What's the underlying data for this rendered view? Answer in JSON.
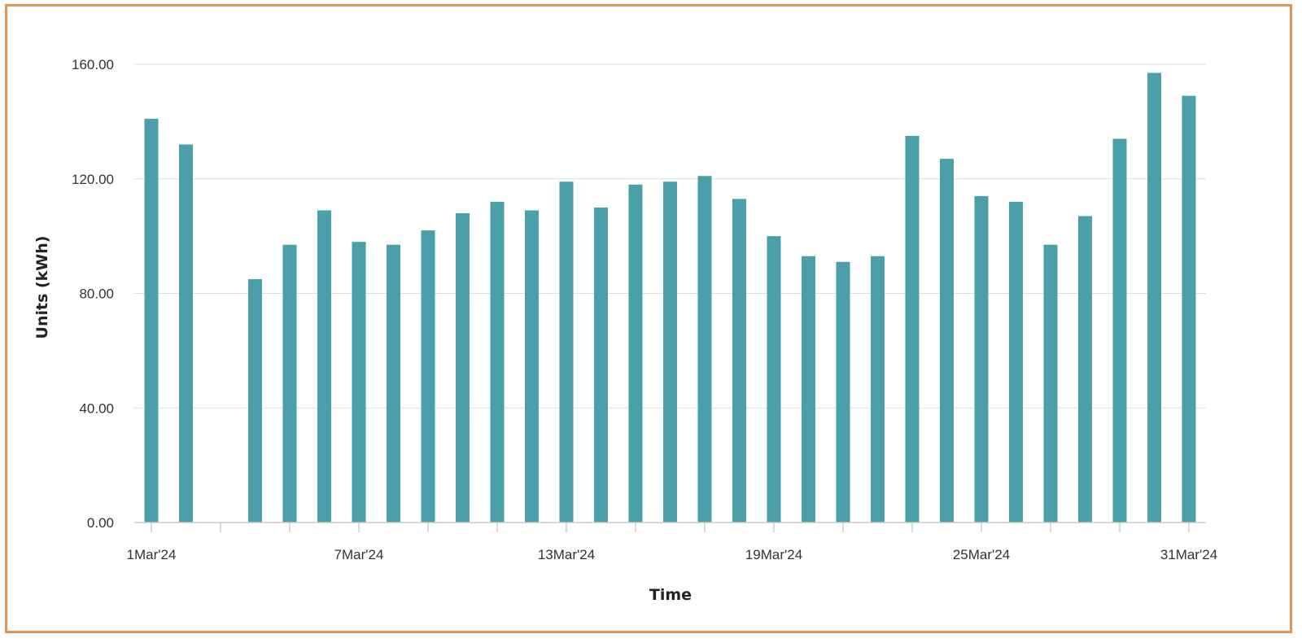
{
  "colors": {
    "bar": "#4a9fa8",
    "frame": "#e29552",
    "grid": "#dddddd",
    "axis": "#cccccc",
    "text": "#333333"
  },
  "chart_data": {
    "type": "bar",
    "xlabel": "Time",
    "ylabel": "Units (kWh)",
    "ylim": [
      0,
      160
    ],
    "y_ticks": [
      "0.00",
      "40.00",
      "80.00",
      "120.00",
      "160.00"
    ],
    "x_tick_labels": [
      "1Mar'24",
      "7Mar'24",
      "13Mar'24",
      "19Mar'24",
      "25Mar'24",
      "31Mar'24"
    ],
    "grid": true,
    "categories": [
      "1Mar'24",
      "2Mar'24",
      "3Mar'24",
      "4Mar'24",
      "5Mar'24",
      "6Mar'24",
      "7Mar'24",
      "8Mar'24",
      "9Mar'24",
      "10Mar'24",
      "11Mar'24",
      "12Mar'24",
      "13Mar'24",
      "14Mar'24",
      "15Mar'24",
      "16Mar'24",
      "17Mar'24",
      "18Mar'24",
      "19Mar'24",
      "20Mar'24",
      "21Mar'24",
      "22Mar'24",
      "23Mar'24",
      "24Mar'24",
      "25Mar'24",
      "26Mar'24",
      "27Mar'24",
      "28Mar'24",
      "29Mar'24",
      "30Mar'24",
      "31Mar'24"
    ],
    "values": [
      141,
      132,
      null,
      85,
      97,
      109,
      98,
      97,
      102,
      108,
      112,
      109,
      119,
      110,
      118,
      119,
      121,
      113,
      100,
      93,
      91,
      93,
      135,
      127,
      114,
      112,
      97,
      107,
      134,
      157,
      149
    ]
  }
}
